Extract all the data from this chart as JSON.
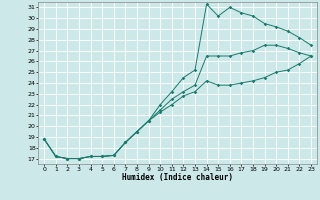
{
  "xlabel": "Humidex (Indice chaleur)",
  "bg_color": "#cce8e8",
  "grid_color": "#ffffff",
  "line_color": "#1a7a6e",
  "xlim": [
    -0.5,
    23.5
  ],
  "ylim": [
    16.5,
    31.5
  ],
  "xticks": [
    0,
    1,
    2,
    3,
    4,
    5,
    6,
    7,
    8,
    9,
    10,
    11,
    12,
    13,
    14,
    15,
    16,
    17,
    18,
    19,
    20,
    21,
    22,
    23
  ],
  "yticks": [
    17,
    18,
    19,
    20,
    21,
    22,
    23,
    24,
    25,
    26,
    27,
    28,
    29,
    30,
    31
  ],
  "line1_x": [
    0,
    1,
    2,
    3,
    4,
    5,
    6,
    7,
    8,
    9,
    10,
    11,
    12,
    13,
    14,
    15,
    16,
    17,
    18,
    19,
    20,
    21,
    22,
    23
  ],
  "line1_y": [
    18.8,
    17.2,
    17.0,
    17.0,
    17.2,
    17.2,
    17.3,
    18.5,
    19.5,
    20.5,
    22.0,
    23.2,
    24.5,
    25.2,
    31.3,
    30.2,
    31.0,
    30.5,
    30.2,
    29.5,
    29.2,
    28.8,
    28.2,
    27.5
  ],
  "line2_x": [
    0,
    1,
    2,
    3,
    4,
    5,
    6,
    7,
    8,
    9,
    10,
    11,
    12,
    13,
    14,
    15,
    16,
    17,
    18,
    19,
    20,
    21,
    22,
    23
  ],
  "line2_y": [
    18.8,
    17.2,
    17.0,
    17.0,
    17.2,
    17.2,
    17.3,
    18.5,
    19.5,
    20.5,
    21.5,
    22.5,
    23.2,
    23.8,
    26.5,
    26.5,
    26.5,
    26.8,
    27.0,
    27.5,
    27.5,
    27.2,
    26.8,
    26.5
  ],
  "line3_x": [
    0,
    1,
    2,
    3,
    4,
    5,
    6,
    7,
    8,
    9,
    10,
    11,
    12,
    13,
    14,
    15,
    16,
    17,
    18,
    19,
    20,
    21,
    22,
    23
  ],
  "line3_y": [
    18.8,
    17.2,
    17.0,
    17.0,
    17.2,
    17.2,
    17.3,
    18.5,
    19.5,
    20.5,
    21.3,
    22.0,
    22.8,
    23.2,
    24.2,
    23.8,
    23.8,
    24.0,
    24.2,
    24.5,
    25.0,
    25.2,
    25.8,
    26.5
  ]
}
